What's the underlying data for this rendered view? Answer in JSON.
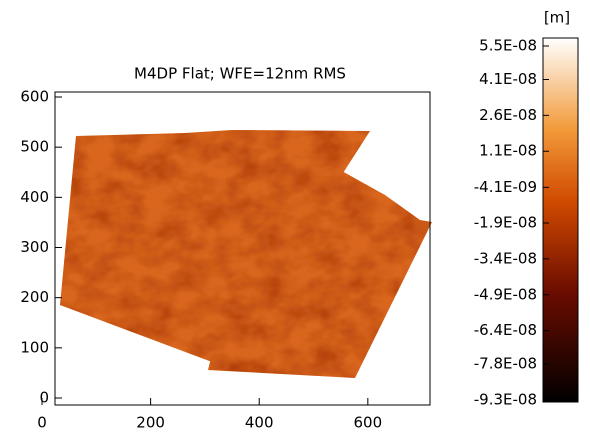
{
  "chart_data": {
    "type": "heatmap",
    "title": "M4DP Flat; WFE=12nm RMS",
    "xlim": [
      0,
      720
    ],
    "xticks": [
      0,
      200,
      400,
      600
    ],
    "ylim": [
      0,
      600
    ],
    "yticks": [
      0,
      100,
      200,
      300,
      400,
      500,
      600
    ],
    "colorbar": {
      "label": "[m]",
      "clim": [
        -9.3e-08,
        5.5e-08
      ],
      "ticks": [
        {
          "value": 5.5e-08,
          "label": "5.5E-08"
        },
        {
          "value": 4.1e-08,
          "label": "4.1E-08"
        },
        {
          "value": 2.6e-08,
          "label": "2.6E-08"
        },
        {
          "value": 1.1e-08,
          "label": "1.1E-08"
        },
        {
          "value": -4.1e-09,
          "label": "-4.1E-09"
        },
        {
          "value": -1.9e-08,
          "label": "-1.9E-08"
        },
        {
          "value": -3.4e-08,
          "label": "-3.4E-08"
        },
        {
          "value": -4.9e-08,
          "label": "-4.9E-08"
        },
        {
          "value": -6.4e-08,
          "label": "-6.4E-08"
        },
        {
          "value": -7.8e-08,
          "label": "-7.8E-08"
        },
        {
          "value": -9.3e-08,
          "label": "-9.3E-08"
        }
      ]
    }
  }
}
